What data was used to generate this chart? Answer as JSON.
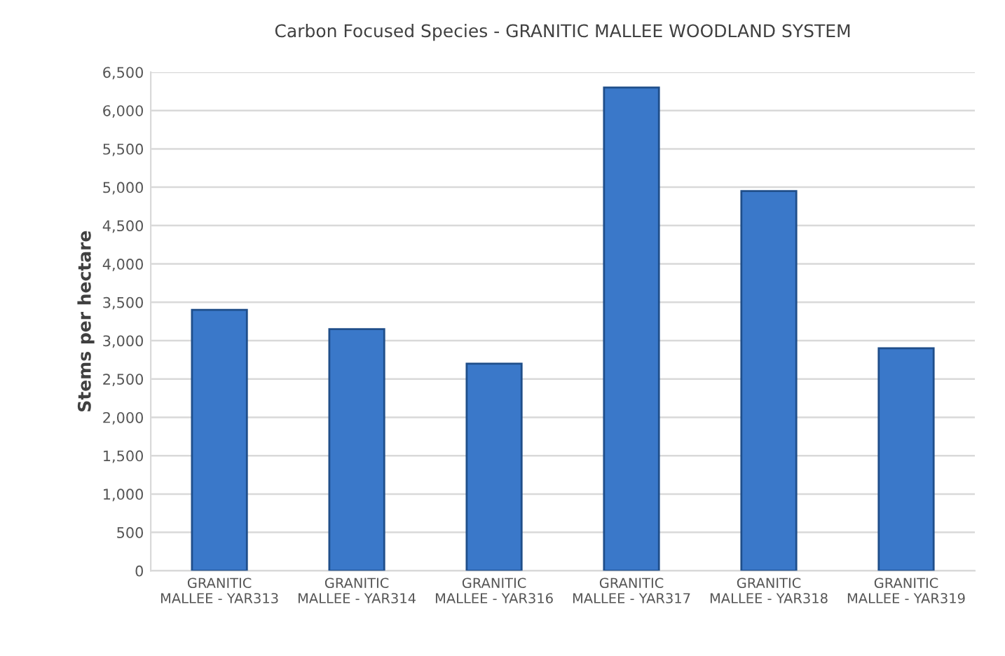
{
  "chart_data": {
    "type": "bar",
    "title": "Carbon Focused Species - GRANITIC MALLEE WOODLAND SYSTEM",
    "ylabel": "Stems per hectare",
    "categories": [
      "GRANITIC\nMALLEE - YAR313",
      "GRANITIC\nMALLEE - YAR314",
      "GRANITIC\nMALLEE - YAR316",
      "GRANITIC\nMALLEE - YAR317",
      "GRANITIC\nMALLEE - YAR318",
      "GRANITIC\nMALLEE - YAR319"
    ],
    "values": [
      3400,
      3150,
      2700,
      6300,
      4950,
      2900
    ],
    "color": "#3a78c9",
    "ylim": [
      0,
      6500
    ],
    "yticks": [
      {
        "value": 0,
        "label": "0"
      },
      {
        "value": 500,
        "label": "500"
      },
      {
        "value": 1000,
        "label": "1,000"
      },
      {
        "value": 1500,
        "label": "1,500"
      },
      {
        "value": 2000,
        "label": "2,000"
      },
      {
        "value": 2500,
        "label": "2,500"
      },
      {
        "value": 3000,
        "label": "3,000"
      },
      {
        "value": 3500,
        "label": "3,500"
      },
      {
        "value": 4000,
        "label": "4,000"
      },
      {
        "value": 4500,
        "label": "4,500"
      },
      {
        "value": 5000,
        "label": "5,000"
      },
      {
        "value": 5500,
        "label": "5,500"
      },
      {
        "value": 6000,
        "label": "6,000"
      },
      {
        "value": 6500,
        "label": "6,500"
      }
    ],
    "grid": "y"
  }
}
